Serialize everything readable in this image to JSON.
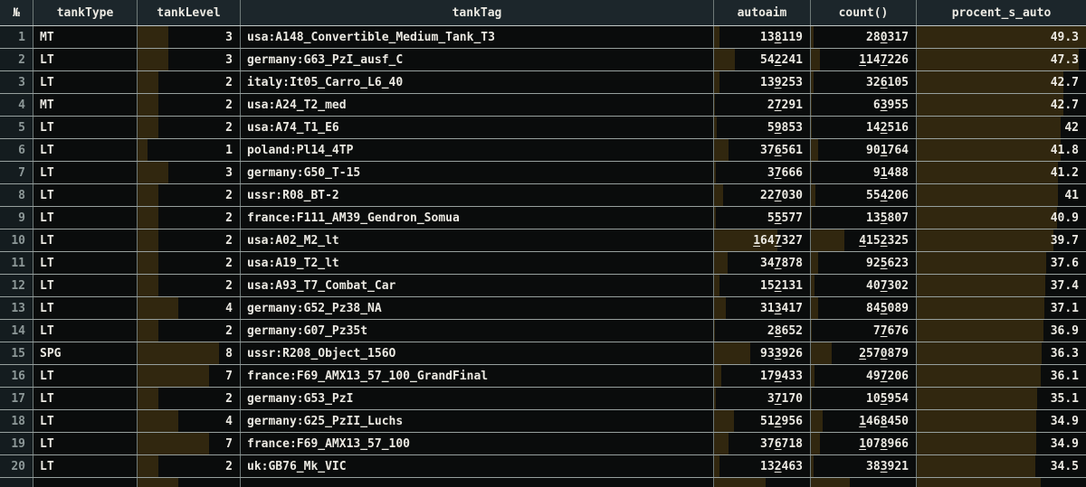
{
  "table": {
    "columns": [
      {
        "key": "num",
        "label": "№",
        "align": "right",
        "bar": false
      },
      {
        "key": "tankType",
        "label": "tankType",
        "align": "left",
        "bar": false
      },
      {
        "key": "tankLevel",
        "label": "tankLevel",
        "align": "right",
        "bar": true
      },
      {
        "key": "tankTag",
        "label": "tankTag",
        "align": "left",
        "bar": false
      },
      {
        "key": "autoaim",
        "label": "autoaim",
        "align": "right",
        "bar": true
      },
      {
        "key": "count",
        "label": "count()",
        "align": "right",
        "bar": true
      },
      {
        "key": "procent",
        "label": "procent_s_auto",
        "align": "right",
        "bar": true
      }
    ],
    "bar_scale": {
      "tankLevel": 10,
      "autoaim": 2500000,
      "count": 13000000,
      "procent": 49.3
    },
    "rows": [
      {
        "num": 1,
        "tankType": "MT",
        "tankLevel": 3,
        "tankTag": "usa:A148_Convertible_Medium_Tank_T3",
        "autoaim": 138119,
        "count": 280317,
        "procent": 49.3
      },
      {
        "num": 2,
        "tankType": "LT",
        "tankLevel": 3,
        "tankTag": "germany:G63_PzI_ausf_C",
        "autoaim": 542241,
        "count": 1147226,
        "procent": 47.3
      },
      {
        "num": 3,
        "tankType": "LT",
        "tankLevel": 2,
        "tankTag": "italy:It05_Carro_L6_40",
        "autoaim": 139253,
        "count": 326105,
        "procent": 42.7
      },
      {
        "num": 4,
        "tankType": "MT",
        "tankLevel": 2,
        "tankTag": "usa:A24_T2_med",
        "autoaim": 27291,
        "count": 63955,
        "procent": 42.7
      },
      {
        "num": 5,
        "tankType": "LT",
        "tankLevel": 2,
        "tankTag": "usa:A74_T1_E6",
        "autoaim": 59853,
        "count": 142516,
        "procent": 42
      },
      {
        "num": 6,
        "tankType": "LT",
        "tankLevel": 1,
        "tankTag": "poland:Pl14_4TP",
        "autoaim": 376561,
        "count": 901764,
        "procent": 41.8
      },
      {
        "num": 7,
        "tankType": "LT",
        "tankLevel": 3,
        "tankTag": "germany:G50_T-15",
        "autoaim": 37666,
        "count": 91488,
        "procent": 41.2
      },
      {
        "num": 8,
        "tankType": "LT",
        "tankLevel": 2,
        "tankTag": "ussr:R08_BT-2",
        "autoaim": 227030,
        "count": 554206,
        "procent": 41
      },
      {
        "num": 9,
        "tankType": "LT",
        "tankLevel": 2,
        "tankTag": "france:F111_AM39_Gendron_Somua",
        "autoaim": 55577,
        "count": 135807,
        "procent": 40.9
      },
      {
        "num": 10,
        "tankType": "LT",
        "tankLevel": 2,
        "tankTag": "usa:A02_M2_lt",
        "autoaim": 1647327,
        "count": 4152325,
        "procent": 39.7
      },
      {
        "num": 11,
        "tankType": "LT",
        "tankLevel": 2,
        "tankTag": "usa:A19_T2_lt",
        "autoaim": 347878,
        "count": 925623,
        "procent": 37.6
      },
      {
        "num": 12,
        "tankType": "LT",
        "tankLevel": 2,
        "tankTag": "usa:A93_T7_Combat_Car",
        "autoaim": 152131,
        "count": 407302,
        "procent": 37.4
      },
      {
        "num": 13,
        "tankType": "LT",
        "tankLevel": 4,
        "tankTag": "germany:G52_Pz38_NA",
        "autoaim": 313417,
        "count": 845089,
        "procent": 37.1
      },
      {
        "num": 14,
        "tankType": "LT",
        "tankLevel": 2,
        "tankTag": "germany:G07_Pz35t",
        "autoaim": 28652,
        "count": 77676,
        "procent": 36.9
      },
      {
        "num": 15,
        "tankType": "SPG",
        "tankLevel": 8,
        "tankTag": "ussr:R208_Object_156O",
        "autoaim": 933926,
        "count": 2570879,
        "procent": 36.3
      },
      {
        "num": 16,
        "tankType": "LT",
        "tankLevel": 7,
        "tankTag": "france:F69_AMX13_57_100_GrandFinal",
        "autoaim": 179433,
        "count": 497206,
        "procent": 36.1
      },
      {
        "num": 17,
        "tankType": "LT",
        "tankLevel": 2,
        "tankTag": "germany:G53_PzI",
        "autoaim": 37170,
        "count": 105954,
        "procent": 35.1
      },
      {
        "num": 18,
        "tankType": "LT",
        "tankLevel": 4,
        "tankTag": "germany:G25_PzII_Luchs",
        "autoaim": 512956,
        "count": 1468450,
        "procent": 34.9
      },
      {
        "num": 19,
        "tankType": "LT",
        "tankLevel": 7,
        "tankTag": "france:F69_AMX13_57_100",
        "autoaim": 376718,
        "count": 1078966,
        "procent": 34.9
      },
      {
        "num": 20,
        "tankType": "LT",
        "tankLevel": 2,
        "tankTag": "uk:GB76_Mk_VIC",
        "autoaim": 132463,
        "count": 383921,
        "procent": 34.5
      }
    ],
    "partial_row_bars": {
      "tankLevel": 0.4,
      "autoaim": 0.54,
      "count": 0.37,
      "procent": 0.73
    }
  },
  "colors": {
    "bar": "#31270f",
    "header_bg": "#1c262b",
    "rownum_bg": "#141c1f",
    "row_bg": "#0a0c0c",
    "text": "#ebe9e2",
    "rownum_text": "#8d9898",
    "grid_v": "#6e7978",
    "grid_h": "#97a09e"
  }
}
